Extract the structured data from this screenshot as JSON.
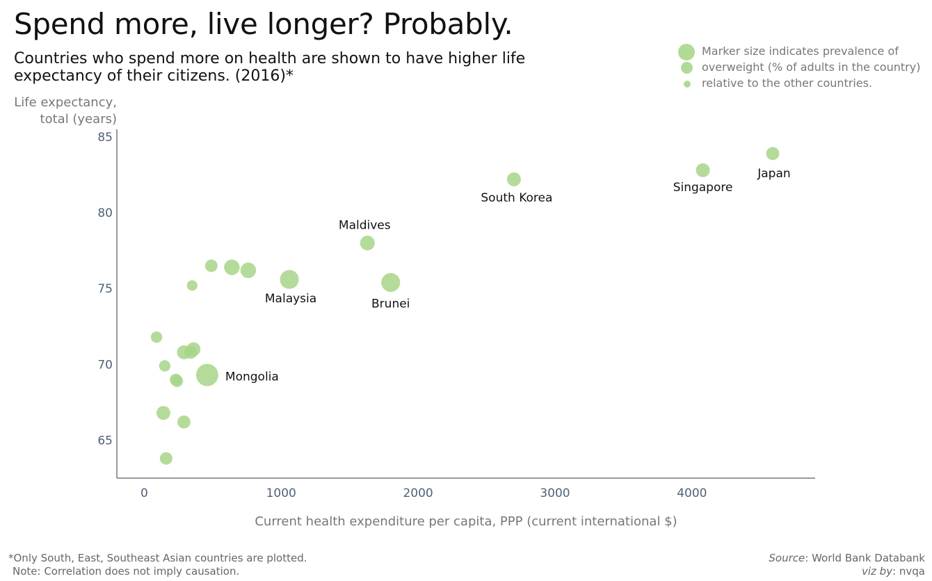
{
  "header": {
    "title": "Spend more, live longer? Probably.",
    "subtitle": "Countries who spend more on health are shown to have higher life expectancy of their citizens. (2016)*"
  },
  "legend": {
    "lines": [
      "Marker size indicates prevalence of",
      "overweight (% of adults in the country)",
      "relative to the other countries."
    ]
  },
  "footer": {
    "note1": "*Only South, East, Southeast Asian countries are plotted.",
    "note2": "Note: Correlation does not imply causation.",
    "source_prefix": "Source",
    "source_text": ": World Bank Databank",
    "viz_prefix": "viz by",
    "viz_text": ": nvqa"
  },
  "colors": {
    "marker": "#a8d58a",
    "axis": "#999999",
    "tick_text": "#4f6278"
  },
  "chart_data": {
    "type": "scatter",
    "title": "Spend more, live longer? Probably.",
    "xlabel": "Current health expenditure per capita, PPP (current international $)",
    "ylabel": "Life expectancy, total (years)",
    "xlim": [
      -200,
      4900
    ],
    "ylim": [
      62.5,
      85.5
    ],
    "xticks": [
      0,
      1000,
      2000,
      3000,
      4000
    ],
    "yticks": [
      65,
      70,
      75,
      80,
      85
    ],
    "grid": false,
    "size_meaning": "prevalence of overweight (% of adults) relative to other countries",
    "points": [
      {
        "x": 4590,
        "y": 83.9,
        "size": 0.45,
        "label": "Japan"
      },
      {
        "x": 4080,
        "y": 82.8,
        "size": 0.5,
        "label": "Singapore"
      },
      {
        "x": 2700,
        "y": 82.2,
        "size": 0.5,
        "label": "South Korea"
      },
      {
        "x": 1630,
        "y": 78.0,
        "size": 0.55,
        "label": "Maldives"
      },
      {
        "x": 1060,
        "y": 75.6,
        "size": 0.8,
        "label": "Malaysia"
      },
      {
        "x": 1800,
        "y": 75.4,
        "size": 0.8,
        "label": "Brunei"
      },
      {
        "x": 460,
        "y": 69.3,
        "size": 1.0,
        "label": "Mongolia"
      },
      {
        "x": 490,
        "y": 76.5,
        "size": 0.42,
        "label": ""
      },
      {
        "x": 640,
        "y": 76.4,
        "size": 0.6,
        "label": ""
      },
      {
        "x": 760,
        "y": 76.2,
        "size": 0.6,
        "label": ""
      },
      {
        "x": 350,
        "y": 75.2,
        "size": 0.3,
        "label": ""
      },
      {
        "x": 90,
        "y": 71.8,
        "size": 0.35,
        "label": ""
      },
      {
        "x": 360,
        "y": 71.0,
        "size": 0.5,
        "label": ""
      },
      {
        "x": 290,
        "y": 70.8,
        "size": 0.5,
        "label": ""
      },
      {
        "x": 340,
        "y": 70.8,
        "size": 0.45,
        "label": ""
      },
      {
        "x": 150,
        "y": 69.9,
        "size": 0.35,
        "label": ""
      },
      {
        "x": 230,
        "y": 69.0,
        "size": 0.38,
        "label": ""
      },
      {
        "x": 240,
        "y": 68.9,
        "size": 0.38,
        "label": ""
      },
      {
        "x": 140,
        "y": 66.8,
        "size": 0.5,
        "label": ""
      },
      {
        "x": 290,
        "y": 66.2,
        "size": 0.45,
        "label": ""
      },
      {
        "x": 160,
        "y": 63.8,
        "size": 0.42,
        "label": ""
      }
    ]
  }
}
